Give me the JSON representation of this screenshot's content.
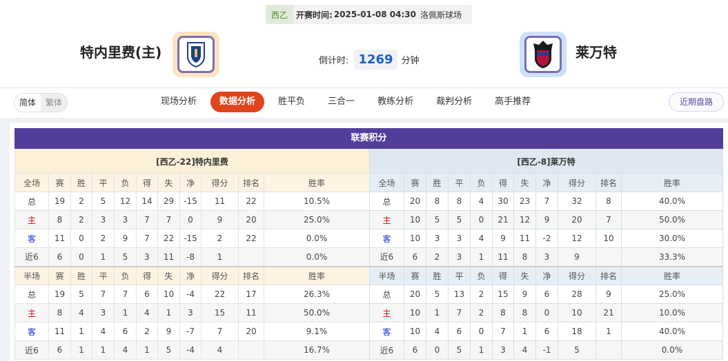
{
  "match": {
    "league": "西乙",
    "time_label": "开赛时间:",
    "time": "2025-01-08 04:30",
    "venue": "洛佩斯球场"
  },
  "home": {
    "name": "特内里费(主)",
    "logo": "tenerife-crest"
  },
  "away": {
    "name": "莱万特",
    "logo": "levante-crest"
  },
  "countdown": {
    "label": "倒计时:",
    "value": "1269",
    "unit": "分钟"
  },
  "lang": {
    "simplified": "简体",
    "traditional": "繁体"
  },
  "tabs": [
    "现场分析",
    "数据分析",
    "胜平负",
    "三合一",
    "教练分析",
    "裁判分析",
    "高手推荐"
  ],
  "active_tab": "数据分析",
  "recent_button": "近期盘路",
  "section_title": "联赛积分",
  "colors": {
    "accent": "#e0441c",
    "header": "#523e9a",
    "home_red": "#e60012",
    "away_blue": "#1733cc"
  },
  "tables": [
    {
      "caption": "[西乙-22]特内里费",
      "full_header": [
        "全场",
        "赛",
        "胜",
        "平",
        "负",
        "得",
        "失",
        "净",
        "得分",
        "排名",
        "胜率"
      ],
      "full_rows": [
        [
          "总",
          "19",
          "2",
          "5",
          "12",
          "14",
          "29",
          "-15",
          "11",
          "22",
          "10.5%"
        ],
        [
          "主",
          "8",
          "2",
          "3",
          "3",
          "7",
          "7",
          "0",
          "9",
          "20",
          "25.0%"
        ],
        [
          "客",
          "11",
          "0",
          "2",
          "9",
          "7",
          "22",
          "-15",
          "2",
          "22",
          "0.0%"
        ],
        [
          "近6",
          "6",
          "0",
          "1",
          "5",
          "3",
          "11",
          "-8",
          "1",
          "",
          "0.0%"
        ]
      ],
      "half_header": [
        "半场",
        "赛",
        "胜",
        "平",
        "负",
        "得",
        "失",
        "净",
        "得分",
        "排名",
        "胜率"
      ],
      "half_rows": [
        [
          "总",
          "19",
          "5",
          "7",
          "7",
          "6",
          "10",
          "-4",
          "22",
          "17",
          "26.3%"
        ],
        [
          "主",
          "8",
          "4",
          "3",
          "1",
          "4",
          "1",
          "3",
          "15",
          "11",
          "50.0%"
        ],
        [
          "客",
          "11",
          "1",
          "4",
          "6",
          "2",
          "9",
          "-7",
          "7",
          "20",
          "9.1%"
        ],
        [
          "近6",
          "6",
          "1",
          "1",
          "4",
          "1",
          "5",
          "-4",
          "4",
          "",
          "16.7%"
        ]
      ]
    },
    {
      "caption": "[西乙-8]莱万特",
      "full_header": [
        "全场",
        "赛",
        "胜",
        "平",
        "负",
        "得",
        "失",
        "净",
        "得分",
        "排名",
        "胜率"
      ],
      "full_rows": [
        [
          "总",
          "20",
          "8",
          "8",
          "4",
          "30",
          "23",
          "7",
          "32",
          "8",
          "40.0%"
        ],
        [
          "主",
          "10",
          "5",
          "5",
          "0",
          "21",
          "12",
          "9",
          "20",
          "7",
          "50.0%"
        ],
        [
          "客",
          "10",
          "3",
          "3",
          "4",
          "9",
          "11",
          "-2",
          "12",
          "10",
          "30.0%"
        ],
        [
          "近6",
          "6",
          "2",
          "3",
          "1",
          "11",
          "8",
          "3",
          "9",
          "",
          "33.3%"
        ]
      ],
      "half_header": [
        "半场",
        "赛",
        "胜",
        "平",
        "负",
        "得",
        "失",
        "净",
        "得分",
        "排名",
        "胜率"
      ],
      "half_rows": [
        [
          "总",
          "20",
          "5",
          "13",
          "2",
          "15",
          "9",
          "6",
          "28",
          "9",
          "25.0%"
        ],
        [
          "主",
          "10",
          "1",
          "7",
          "2",
          "8",
          "8",
          "0",
          "10",
          "21",
          "10.0%"
        ],
        [
          "客",
          "10",
          "4",
          "6",
          "0",
          "7",
          "1",
          "6",
          "18",
          "1",
          "40.0%"
        ],
        [
          "近6",
          "6",
          "0",
          "5",
          "1",
          "3",
          "4",
          "-1",
          "5",
          "",
          "0.0%"
        ]
      ]
    }
  ]
}
